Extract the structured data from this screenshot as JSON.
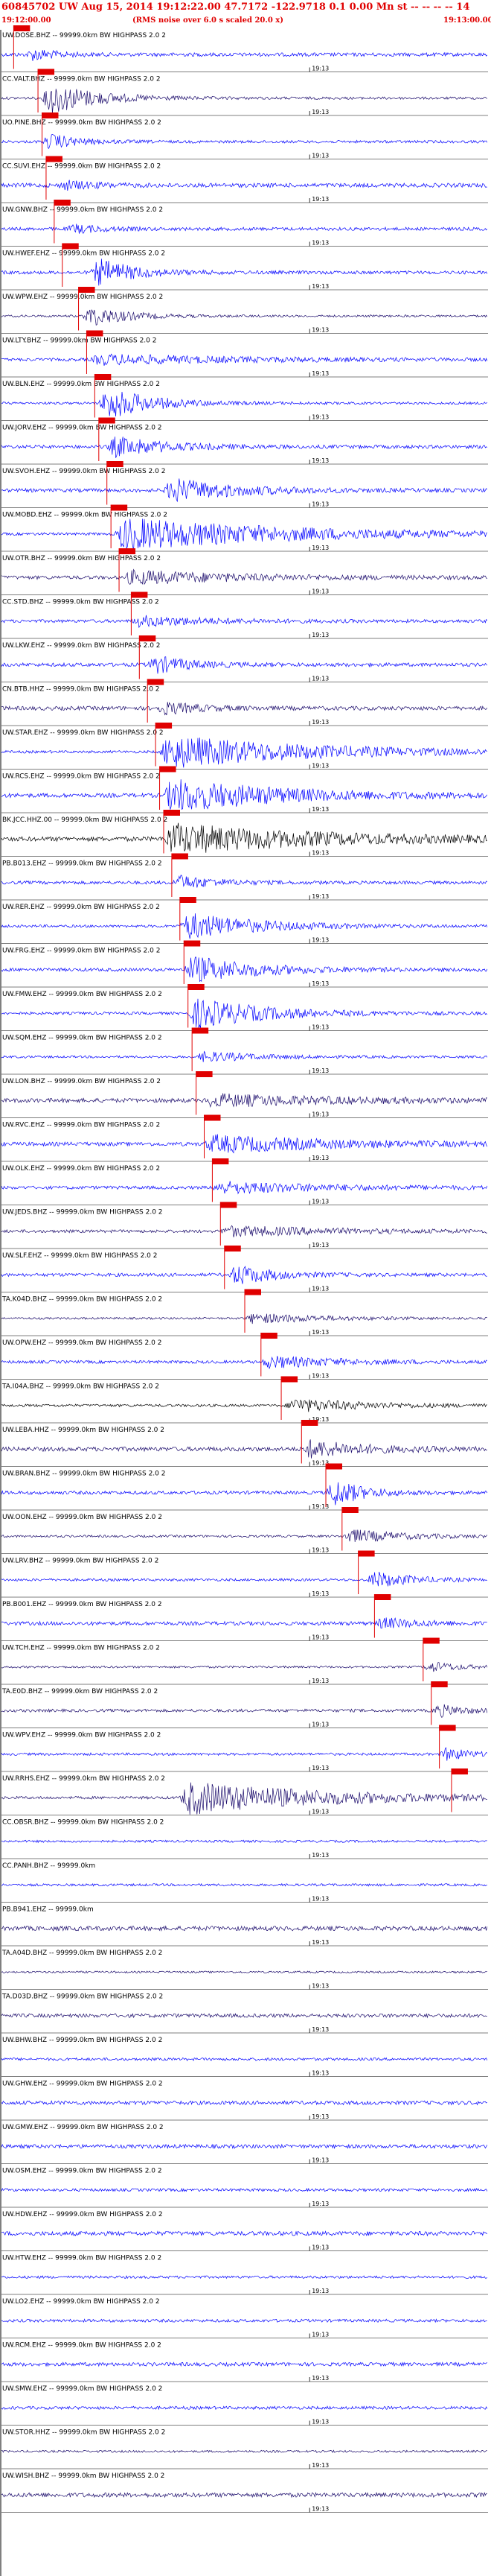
{
  "header": {
    "title": "60845702 UW Aug 15, 2014 19:12:22.00   47.7172 -122.9718  0.1 0.00 Mn st -- -- -- -- 14",
    "subtitle": "(RMS noise over 6.0 s scaled 20.0 x)",
    "time_start": "19:12:00.00",
    "time_end": "19:13:00.00"
  },
  "minute_tick_label": "19:13",
  "colors": {
    "trace_blue": "#0000ff",
    "trace_navy": "#1a0a6b",
    "trace_black": "#000000",
    "pick_red": "#e00000",
    "axis": "#000000"
  },
  "chart_data": {
    "type": "line",
    "title": "60845702 UW Aug 15, 2014 19:12:22.00",
    "x_range_seconds": [
      0,
      60
    ],
    "traces": [
      {
        "label": "UW.DOSE.BHZ -- 99999.0km BW  HIGHPASS  2.0  2",
        "pick_s": 1.5,
        "onset_s": 3,
        "amp": 0.35,
        "dur_s": 6,
        "color": "blue"
      },
      {
        "label": "CC.VALT.BHZ -- 99999.0km BW  HIGHPASS  2.0  2",
        "pick_s": 4.5,
        "onset_s": 5,
        "amp": 1.0,
        "dur_s": 12,
        "color": "navy"
      },
      {
        "label": "UO.PINE.BHZ -- 99999.0km BW  HIGHPASS  2.0  2",
        "pick_s": 5.0,
        "onset_s": 5,
        "amp": 0.45,
        "dur_s": 8,
        "color": "blue"
      },
      {
        "label": "CC.SUVI.EHZ -- 99999.0km BW  HIGHPASS  2.0  2",
        "pick_s": 5.5,
        "onset_s": 7,
        "amp": 0.25,
        "dur_s": 8,
        "color": "blue"
      },
      {
        "label": "UW.GNW.BHZ -- 99999.0km BW  HIGHPASS  2.0  2",
        "pick_s": 6.5,
        "onset_s": 8,
        "amp": 0.25,
        "dur_s": 8,
        "color": "blue"
      },
      {
        "label": "UW.HWEF.EHZ -- 99999.0km BW  HIGHPASS  2.0  2",
        "pick_s": 7.5,
        "onset_s": 11,
        "amp": 0.8,
        "dur_s": 10,
        "color": "blue"
      },
      {
        "label": "UW.WPW.EHZ -- 99999.0km BW  HIGHPASS  2.0  2",
        "pick_s": 9.5,
        "onset_s": 10,
        "amp": 0.6,
        "dur_s": 10,
        "color": "navy"
      },
      {
        "label": "UW.LTY.BHZ -- 99999.0km BW  HIGHPASS  2.0  2",
        "pick_s": 10.5,
        "onset_s": 11,
        "amp": 0.3,
        "dur_s": 40,
        "color": "blue"
      },
      {
        "label": "UW.BLN.EHZ -- 99999.0km BW  HIGHPASS  2.0  2",
        "pick_s": 11.5,
        "onset_s": 12,
        "amp": 1.0,
        "dur_s": 12,
        "color": "blue"
      },
      {
        "label": "UW.JORV.EHZ -- 99999.0km BW  HIGHPASS  2.0  2",
        "pick_s": 12.0,
        "onset_s": 13,
        "amp": 0.6,
        "dur_s": 14,
        "color": "blue"
      },
      {
        "label": "UW.SVOH.EHZ -- 99999.0km BW  HIGHPASS  2.0  2",
        "pick_s": 13.0,
        "onset_s": 20,
        "amp": 0.7,
        "dur_s": 18,
        "color": "blue"
      },
      {
        "label": "UW.MOBD.EHZ -- 99999.0km BW  HIGHPASS  2.0  2",
        "pick_s": 13.5,
        "onset_s": 14,
        "amp": 1.0,
        "dur_s": 46,
        "color": "blue"
      },
      {
        "label": "UW.OTR.BHZ -- 99999.0km BW  HIGHPASS  2.0  2",
        "pick_s": 14.5,
        "onset_s": 15,
        "amp": 0.4,
        "dur_s": 30,
        "color": "navy"
      },
      {
        "label": "CC.STD.BHZ -- 99999.0km BW  HIGHPASS  2.0  2",
        "pick_s": 16.0,
        "onset_s": 16,
        "amp": 0.3,
        "dur_s": 20,
        "color": "blue"
      },
      {
        "label": "UW.LKW.EHZ -- 99999.0km BW  HIGHPASS  2.0  2",
        "pick_s": 17.0,
        "onset_s": 18,
        "amp": 0.5,
        "dur_s": 10,
        "color": "blue"
      },
      {
        "label": "CN.BTB.HHZ -- 99999.0km BW  HIGHPASS  2.0  2",
        "pick_s": 18.0,
        "onset_s": 19,
        "amp": 0.35,
        "dur_s": 10,
        "color": "navy"
      },
      {
        "label": "UW.STAR.EHZ -- 99999.0km BW  HIGHPASS  2.0  2",
        "pick_s": 19.0,
        "onset_s": 19.5,
        "amp": 1.0,
        "dur_s": 40,
        "color": "blue"
      },
      {
        "label": "UW.RCS.EHZ -- 99999.0km BW  HIGHPASS  2.0  2",
        "pick_s": 19.5,
        "onset_s": 20,
        "amp": 1.0,
        "dur_s": 30,
        "color": "blue"
      },
      {
        "label": "BK.JCC.HHZ.00 -- 99999.0km BW  HIGHPASS  2.0  2",
        "pick_s": 20.0,
        "onset_s": 20,
        "amp": 0.9,
        "dur_s": 40,
        "color": "black"
      },
      {
        "label": "PB.B013.EHZ -- 99999.0km BW  HIGHPASS  2.0  2",
        "pick_s": 21.0,
        "onset_s": 21,
        "amp": 0.4,
        "dur_s": 10,
        "color": "blue"
      },
      {
        "label": "UW.RER.EHZ -- 99999.0km BW  HIGHPASS  2.0  2",
        "pick_s": 22.0,
        "onset_s": 22,
        "amp": 0.8,
        "dur_s": 20,
        "color": "blue"
      },
      {
        "label": "UW.FRG.EHZ -- 99999.0km BW  HIGHPASS  2.0  2",
        "pick_s": 22.5,
        "onset_s": 22.5,
        "amp": 0.8,
        "dur_s": 18,
        "color": "blue"
      },
      {
        "label": "UW.FMW.EHZ -- 99999.0km BW  HIGHPASS  2.0  2",
        "pick_s": 23.0,
        "onset_s": 23,
        "amp": 0.9,
        "dur_s": 20,
        "color": "blue"
      },
      {
        "label": "UW.SQM.EHZ -- 99999.0km BW  HIGHPASS  2.0  2",
        "pick_s": 23.5,
        "onset_s": 24,
        "amp": 0.3,
        "dur_s": 15,
        "color": "blue"
      },
      {
        "label": "UW.LON.BHZ -- 99999.0km BW  HIGHPASS  2.0  2",
        "pick_s": 24.0,
        "onset_s": 25,
        "amp": 0.35,
        "dur_s": 35,
        "color": "navy"
      },
      {
        "label": "UW.RVC.EHZ -- 99999.0km BW  HIGHPASS  2.0  2",
        "pick_s": 25.0,
        "onset_s": 25,
        "amp": 0.5,
        "dur_s": 35,
        "color": "blue"
      },
      {
        "label": "UW.OLK.EHZ -- 99999.0km BW  HIGHPASS  2.0  2",
        "pick_s": 26.0,
        "onset_s": 26,
        "amp": 0.35,
        "dur_s": 30,
        "color": "blue"
      },
      {
        "label": "UW.JEDS.BHZ -- 99999.0km BW  HIGHPASS  2.0  2",
        "pick_s": 27.0,
        "onset_s": 27,
        "amp": 0.3,
        "dur_s": 30,
        "color": "navy"
      },
      {
        "label": "UW.SLF.EHZ -- 99999.0km BW  HIGHPASS  2.0  2",
        "pick_s": 27.5,
        "onset_s": 28,
        "amp": 0.6,
        "dur_s": 10,
        "color": "blue"
      },
      {
        "label": "TA.K04D.BHZ -- 99999.0km BW  HIGHPASS  2.0  2",
        "pick_s": 30.0,
        "onset_s": 30,
        "amp": 0.3,
        "dur_s": 20,
        "color": "navy"
      },
      {
        "label": "UW.OPW.EHZ -- 99999.0km BW  HIGHPASS  2.0  2",
        "pick_s": 32.0,
        "onset_s": 32,
        "amp": 0.35,
        "dur_s": 20,
        "color": "blue"
      },
      {
        "label": "TA.I04A.BHZ -- 99999.0km BW  HIGHPASS  2.0  2",
        "pick_s": 34.5,
        "onset_s": 35,
        "amp": 0.4,
        "dur_s": 20,
        "color": "black"
      },
      {
        "label": "UW.LEBA.HHZ -- 99999.0km BW  HIGHPASS  2.0  2",
        "pick_s": 37.0,
        "onset_s": 37,
        "amp": 0.5,
        "dur_s": 15,
        "color": "navy"
      },
      {
        "label": "UW.BRAN.BHZ -- 99999.0km BW  HIGHPASS  2.0  2",
        "pick_s": 40.0,
        "onset_s": 40,
        "amp": 0.8,
        "dur_s": 8,
        "color": "blue"
      },
      {
        "label": "UW.OON.EHZ -- 99999.0km BW  HIGHPASS  2.0  2",
        "pick_s": 42.0,
        "onset_s": 42,
        "amp": 0.4,
        "dur_s": 15,
        "color": "navy"
      },
      {
        "label": "UW.LRV.BHZ -- 99999.0km BW  HIGHPASS  2.0  2",
        "pick_s": 44.0,
        "onset_s": 45,
        "amp": 0.5,
        "dur_s": 10,
        "color": "blue"
      },
      {
        "label": "PB.B001.EHZ -- 99999.0km BW  HIGHPASS  2.0  2",
        "pick_s": 46.0,
        "onset_s": 46,
        "amp": 0.3,
        "dur_s": 10,
        "color": "blue"
      },
      {
        "label": "UW.TCH.EHZ -- 99999.0km BW  HIGHPASS  2.0  2",
        "pick_s": 52.0,
        "onset_s": 52,
        "amp": 0.3,
        "dur_s": 8,
        "color": "navy"
      },
      {
        "label": "TA.E0D.BHZ -- 99999.0km BW  HIGHPASS  2.0  2",
        "pick_s": 53.0,
        "onset_s": 53,
        "amp": 0.35,
        "dur_s": 7,
        "color": "navy"
      },
      {
        "label": "UW.WPV.EHZ -- 99999.0km BW  HIGHPASS  2.0  2",
        "pick_s": 54.0,
        "onset_s": 54,
        "amp": 0.4,
        "dur_s": 6,
        "color": "blue"
      },
      {
        "label": "UW.RRHS.EHZ -- 99999.0km BW  HIGHPASS  2.0  2",
        "pick_s": 55.5,
        "onset_s": 22,
        "amp": 1.0,
        "dur_s": 38,
        "color": "navy"
      },
      {
        "label": "CC.OBSR.BHZ -- 99999.0km BW  HIGHPASS  2.0  2",
        "pick_s": null,
        "onset_s": null,
        "amp": 0.0,
        "dur_s": 0,
        "color": "blue"
      },
      {
        "label": "CC.PANH.BHZ -- 99999.0km",
        "pick_s": null,
        "onset_s": null,
        "amp": 0.0,
        "dur_s": 0,
        "color": "blue"
      },
      {
        "label": "PB.B941.EHZ -- 99999.0km",
        "pick_s": null,
        "onset_s": null,
        "amp": 0.0,
        "dur_s": 0,
        "color": "navy"
      },
      {
        "label": "TA.A04D.BHZ -- 99999.0km BW  HIGHPASS  2.0  2",
        "pick_s": null,
        "onset_s": null,
        "amp": 0.0,
        "dur_s": 0,
        "color": "navy"
      },
      {
        "label": "TA.D03D.BHZ -- 99999.0km BW  HIGHPASS  2.0  2",
        "pick_s": null,
        "onset_s": null,
        "amp": 0.0,
        "dur_s": 0,
        "color": "navy"
      },
      {
        "label": "UW.BHW.BHZ -- 99999.0km BW  HIGHPASS  2.0  2",
        "pick_s": null,
        "onset_s": null,
        "amp": 0.0,
        "dur_s": 0,
        "color": "blue"
      },
      {
        "label": "UW.GHW.EHZ -- 99999.0km BW  HIGHPASS  2.0  2",
        "pick_s": null,
        "onset_s": null,
        "amp": 0.0,
        "dur_s": 0,
        "color": "blue"
      },
      {
        "label": "UW.GMW.EHZ -- 99999.0km BW  HIGHPASS  2.0  2",
        "pick_s": null,
        "onset_s": null,
        "amp": 0.0,
        "dur_s": 0,
        "color": "blue"
      },
      {
        "label": "UW.OSM.EHZ -- 99999.0km BW  HIGHPASS  2.0  2",
        "pick_s": null,
        "onset_s": null,
        "amp": 0.0,
        "dur_s": 0,
        "color": "blue"
      },
      {
        "label": "UW.HDW.EHZ -- 99999.0km BW  HIGHPASS  2.0  2",
        "pick_s": null,
        "onset_s": null,
        "amp": 0.0,
        "dur_s": 0,
        "color": "blue"
      },
      {
        "label": "UW.HTW.EHZ -- 99999.0km BW  HIGHPASS  2.0  2",
        "pick_s": null,
        "onset_s": null,
        "amp": 0.0,
        "dur_s": 0,
        "color": "blue"
      },
      {
        "label": "UW.LO2.EHZ -- 99999.0km BW  HIGHPASS  2.0  2",
        "pick_s": null,
        "onset_s": null,
        "amp": 0.0,
        "dur_s": 0,
        "color": "blue"
      },
      {
        "label": "UW.RCM.EHZ -- 99999.0km BW  HIGHPASS  2.0  2",
        "pick_s": null,
        "onset_s": null,
        "amp": 0.0,
        "dur_s": 0,
        "color": "blue"
      },
      {
        "label": "UW.SMW.EHZ -- 99999.0km BW  HIGHPASS  2.0  2",
        "pick_s": null,
        "onset_s": null,
        "amp": 0.0,
        "dur_s": 0,
        "color": "blue"
      },
      {
        "label": "UW.STOR.HHZ -- 99999.0km BW  HIGHPASS  2.0  2",
        "pick_s": null,
        "onset_s": null,
        "amp": 0.0,
        "dur_s": 0,
        "color": "navy"
      },
      {
        "label": "UW.WISH.BHZ -- 99999.0km BW  HIGHPASS  2.0  2",
        "pick_s": null,
        "onset_s": null,
        "amp": 0.0,
        "dur_s": 0,
        "color": "navy"
      }
    ]
  }
}
